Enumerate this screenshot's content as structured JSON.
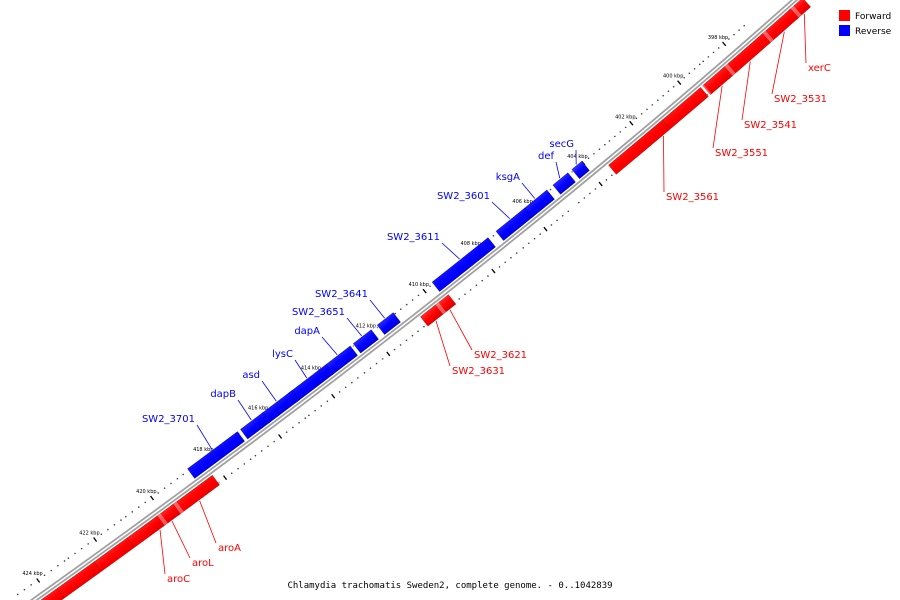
{
  "colors": {
    "forward": "#ff0000",
    "reverse": "#0000ff",
    "backbone": "#808080"
  },
  "legend": [
    {
      "key": "forward",
      "label": "Forward",
      "color": "#ff0000"
    },
    {
      "key": "reverse",
      "label": "Reverse",
      "color": "#0000ff"
    }
  ],
  "caption": "Chlamydia trachomatis Sweden2, complete genome. - 0..1042839",
  "ticks": [
    "398 kbp",
    "400 kbp",
    "402 kbp",
    "404 kbp",
    "406 kbp",
    "408 kbp",
    "410 kbp",
    "412 kbp",
    "414 kbp",
    "416 kbp",
    "418 kbp",
    "420 kbp",
    "422 kbp",
    "424 kbp"
  ],
  "reverse_genes": [
    {
      "name": "secG"
    },
    {
      "name": "def"
    },
    {
      "name": "ksgA"
    },
    {
      "name": "SW2_3601"
    },
    {
      "name": "SW2_3611"
    },
    {
      "name": "SW2_3641"
    },
    {
      "name": "SW2_3651"
    },
    {
      "name": "dapA"
    },
    {
      "name": "lysC"
    },
    {
      "name": "asd"
    },
    {
      "name": "dapB"
    },
    {
      "name": "SW2_3701"
    }
  ],
  "forward_genes": [
    {
      "name": "xerC"
    },
    {
      "name": "SW2_3531"
    },
    {
      "name": "SW2_3541"
    },
    {
      "name": "SW2_3551"
    },
    {
      "name": "SW2_3561"
    },
    {
      "name": "SW2_3621"
    },
    {
      "name": "SW2_3631"
    },
    {
      "name": "aroA"
    },
    {
      "name": "aroL"
    },
    {
      "name": "aroC"
    }
  ]
}
